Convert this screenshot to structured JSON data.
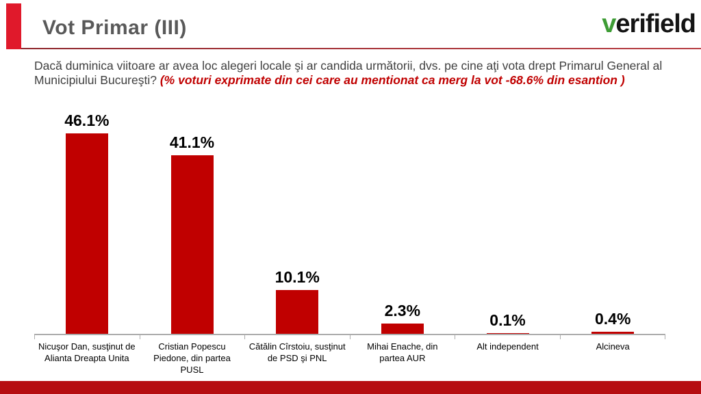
{
  "header": {
    "title": "Vot Primar (III)",
    "logo_prefix": "v",
    "logo_rest": "erifield"
  },
  "question": {
    "main": "Dacă duminica viitoare ar avea loc alegeri locale şi ar candida următorii, dvs. pe cine aţi vota drept Primarul General al Municipiului Bucureşti? ",
    "note": "(% voturi exprimate din cei care au mentionat ca merg la vot -68.6% din esantion )"
  },
  "chart_data": {
    "type": "bar",
    "categories": [
      "Nicuşor Dan, susţinut de Alianta Dreapta Unita",
      "Cristian Popescu Piedone, din partea PUSL",
      "Cătălin Cîrstoiu, susţinut de PSD şi PNL",
      "Mihai Enache, din partea AUR",
      "Alt independent",
      "Alcineva"
    ],
    "values": [
      46.1,
      41.1,
      10.1,
      2.3,
      0.1,
      0.4
    ],
    "labels": [
      "46.1%",
      "41.1%",
      "10.1%",
      "2.3%",
      "0.1%",
      "0.4%"
    ],
    "title": "",
    "xlabel": "",
    "ylabel": "",
    "ylim": [
      0,
      50
    ],
    "grid": false,
    "legend": "none",
    "bar_color": "#C00000",
    "axis_color": "#ACACAC"
  },
  "colors": {
    "accent_bar": "#E0192B",
    "title_gray": "#595959",
    "question_text": "#3f3f3f",
    "note_red": "#C00000",
    "logo_green": "#3E9C35",
    "bottom_strip": "#B60D11"
  }
}
